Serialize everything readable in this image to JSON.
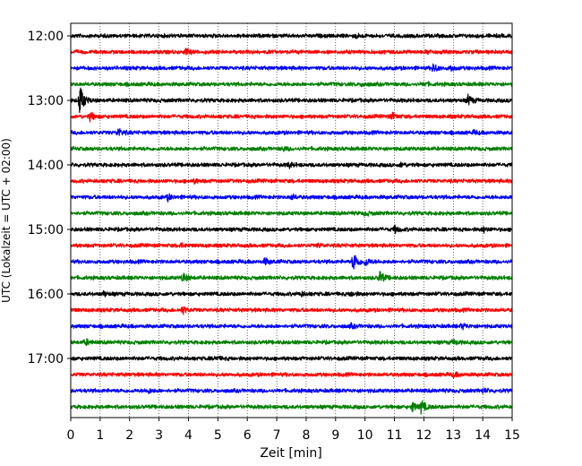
{
  "chart_data": {
    "type": "line",
    "title": "",
    "xlabel": "Zeit  [min]",
    "ylabel": "UTC (Lokalzeit = UTC + 02:00)",
    "xlim": [
      0,
      15
    ],
    "xticks": [
      "0",
      "1",
      "2",
      "3",
      "4",
      "5",
      "6",
      "7",
      "8",
      "9",
      "10",
      "11",
      "12",
      "13",
      "14",
      "15"
    ],
    "ytick_labels": [
      "12:00",
      "13:00",
      "14:00",
      "15:00",
      "16:00",
      "17:00"
    ],
    "grid": "vertical dotted",
    "trace_interval_min": 15,
    "trace_colors": [
      "#000000",
      "#ff0000",
      "#0000ff",
      "#008000"
    ],
    "series": [
      {
        "start": "12:00",
        "color": "#000000",
        "events": [
          {
            "t": 9.7,
            "amp": 0.2
          }
        ]
      },
      {
        "start": "12:15",
        "color": "#ff0000",
        "events": [
          {
            "t": 3.9,
            "amp": 0.35
          },
          {
            "t": 12.1,
            "amp": 0.2
          }
        ]
      },
      {
        "start": "12:30",
        "color": "#0000ff",
        "events": [
          {
            "t": 12.3,
            "amp": 0.55
          },
          {
            "t": 12.9,
            "amp": 0.3
          }
        ]
      },
      {
        "start": "12:45",
        "color": "#008000",
        "events": [
          {
            "t": 9.9,
            "amp": 0.25
          },
          {
            "t": 12.0,
            "amp": 0.2
          }
        ]
      },
      {
        "start": "13:00",
        "color": "#000000",
        "events": [
          {
            "t": 0.3,
            "amp": 1.9
          },
          {
            "t": 13.5,
            "amp": 0.6
          }
        ]
      },
      {
        "start": "13:15",
        "color": "#ff0000",
        "events": [
          {
            "t": 0.65,
            "amp": 0.55
          },
          {
            "t": 10.9,
            "amp": 0.4
          }
        ]
      },
      {
        "start": "13:30",
        "color": "#0000ff",
        "events": [
          {
            "t": 1.6,
            "amp": 0.5
          },
          {
            "t": 13.7,
            "amp": 0.2
          }
        ]
      },
      {
        "start": "13:45",
        "color": "#008000",
        "events": [
          {
            "t": 7.2,
            "amp": 0.25
          }
        ]
      },
      {
        "start": "14:00",
        "color": "#000000",
        "events": [
          {
            "t": 7.4,
            "amp": 0.3
          },
          {
            "t": 11.2,
            "amp": 0.25
          }
        ]
      },
      {
        "start": "14:15",
        "color": "#ff0000",
        "events": [
          {
            "t": 4.2,
            "amp": 0.2
          }
        ]
      },
      {
        "start": "14:30",
        "color": "#0000ff",
        "events": [
          {
            "t": 3.3,
            "amp": 0.35
          },
          {
            "t": 7.5,
            "amp": 0.25
          }
        ]
      },
      {
        "start": "14:45",
        "color": "#008000",
        "events": [
          {
            "t": 10.0,
            "amp": 0.25
          }
        ]
      },
      {
        "start": "15:00",
        "color": "#000000",
        "events": [
          {
            "t": 11.0,
            "amp": 0.4
          },
          {
            "t": 14.0,
            "amp": 0.3
          }
        ]
      },
      {
        "start": "15:15",
        "color": "#ff0000",
        "events": [
          {
            "t": 3.7,
            "amp": 0.25
          },
          {
            "t": 8.4,
            "amp": 0.2
          }
        ]
      },
      {
        "start": "15:30",
        "color": "#0000ff",
        "events": [
          {
            "t": 6.6,
            "amp": 0.4
          },
          {
            "t": 9.6,
            "amp": 1.3
          },
          {
            "t": 10.0,
            "amp": 0.5
          }
        ]
      },
      {
        "start": "15:45",
        "color": "#008000",
        "events": [
          {
            "t": 3.8,
            "amp": 0.6
          },
          {
            "t": 10.5,
            "amp": 0.75
          }
        ]
      },
      {
        "start": "16:00",
        "color": "#000000",
        "events": [
          {
            "t": 1.1,
            "amp": 0.3
          },
          {
            "t": 7.8,
            "amp": 0.3
          },
          {
            "t": 9.5,
            "amp": 0.3
          }
        ]
      },
      {
        "start": "16:15",
        "color": "#ff0000",
        "events": [
          {
            "t": 3.8,
            "amp": 0.45
          }
        ]
      },
      {
        "start": "16:30",
        "color": "#0000ff",
        "events": [
          {
            "t": 9.5,
            "amp": 0.25
          },
          {
            "t": 13.3,
            "amp": 0.35
          }
        ]
      },
      {
        "start": "16:45",
        "color": "#008000",
        "events": [
          {
            "t": 0.5,
            "amp": 0.35
          },
          {
            "t": 13.0,
            "amp": 0.3
          }
        ]
      },
      {
        "start": "17:00",
        "color": "#000000",
        "events": [
          {
            "t": 4.9,
            "amp": 0.25
          }
        ]
      },
      {
        "start": "17:15",
        "color": "#ff0000",
        "events": [
          {
            "t": 13.0,
            "amp": 0.25
          }
        ]
      },
      {
        "start": "17:30",
        "color": "#0000ff",
        "events": [
          {
            "t": 2.6,
            "amp": 0.3
          },
          {
            "t": 14.0,
            "amp": 0.25
          }
        ]
      },
      {
        "start": "17:45",
        "color": "#008000",
        "events": [
          {
            "t": 11.6,
            "amp": 0.6
          },
          {
            "t": 11.9,
            "amp": 0.8
          }
        ]
      }
    ]
  }
}
